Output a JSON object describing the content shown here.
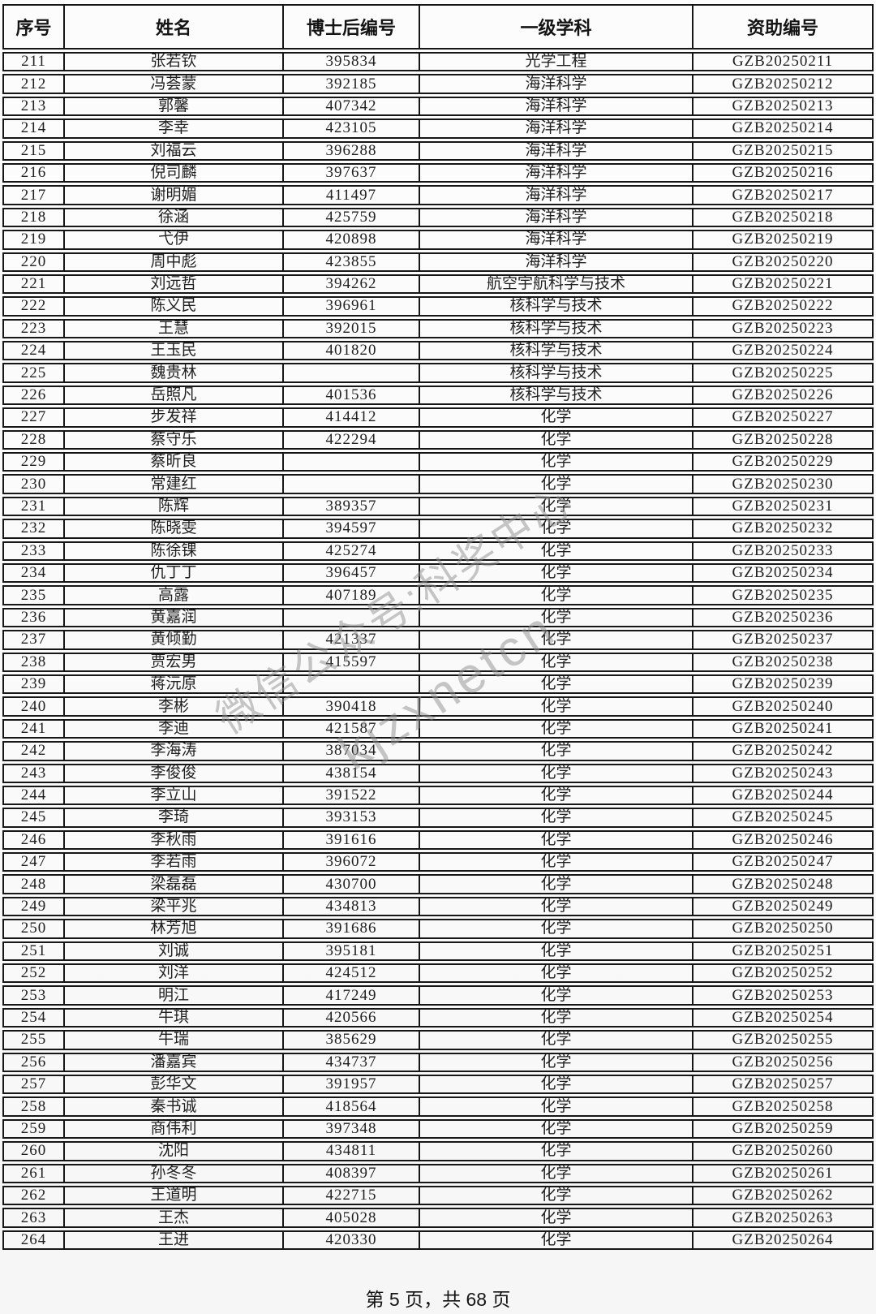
{
  "page": {
    "footer": "第 5 页，共 68 页"
  },
  "watermark": {
    "line1": "微信公众号:科奖中心",
    "line2": "kjzxnetcn"
  },
  "colors": {
    "border": "#161616",
    "text": "#1f1f1f",
    "watermark": "#8f8f8f",
    "background": "#fbfbfb"
  },
  "table": {
    "headers": [
      "序号",
      "姓名",
      "博士后编号",
      "一级学科",
      "资助编号"
    ],
    "rows": [
      [
        "211",
        "张若钦",
        "395834",
        "光学工程",
        "GZB20250211"
      ],
      [
        "212",
        "冯荟蒙",
        "392185",
        "海洋科学",
        "GZB20250212"
      ],
      [
        "213",
        "郭馨",
        "407342",
        "海洋科学",
        "GZB20250213"
      ],
      [
        "214",
        "李幸",
        "423105",
        "海洋科学",
        "GZB20250214"
      ],
      [
        "215",
        "刘福云",
        "396288",
        "海洋科学",
        "GZB20250215"
      ],
      [
        "216",
        "倪司麟",
        "397637",
        "海洋科学",
        "GZB20250216"
      ],
      [
        "217",
        "谢明媚",
        "411497",
        "海洋科学",
        "GZB20250217"
      ],
      [
        "218",
        "徐涵",
        "425759",
        "海洋科学",
        "GZB20250218"
      ],
      [
        "219",
        "弋伊",
        "420898",
        "海洋科学",
        "GZB20250219"
      ],
      [
        "220",
        "周中彪",
        "423855",
        "海洋科学",
        "GZB20250220"
      ],
      [
        "221",
        "刘远哲",
        "394262",
        "航空宇航科学与技术",
        "GZB20250221"
      ],
      [
        "222",
        "陈义民",
        "396961",
        "核科学与技术",
        "GZB20250222"
      ],
      [
        "223",
        "王慧",
        "392015",
        "核科学与技术",
        "GZB20250223"
      ],
      [
        "224",
        "王玉民",
        "401820",
        "核科学与技术",
        "GZB20250224"
      ],
      [
        "225",
        "魏贵林",
        "",
        "核科学与技术",
        "GZB20250225"
      ],
      [
        "226",
        "岳照凡",
        "401536",
        "核科学与技术",
        "GZB20250226"
      ],
      [
        "227",
        "步发祥",
        "414412",
        "化学",
        "GZB20250227"
      ],
      [
        "228",
        "蔡守乐",
        "422294",
        "化学",
        "GZB20250228"
      ],
      [
        "229",
        "蔡昕良",
        "",
        "化学",
        "GZB20250229"
      ],
      [
        "230",
        "常建红",
        "",
        "化学",
        "GZB20250230"
      ],
      [
        "231",
        "陈辉",
        "389357",
        "化学",
        "GZB20250231"
      ],
      [
        "232",
        "陈晓雯",
        "394597",
        "化学",
        "GZB20250232"
      ],
      [
        "233",
        "陈徐锞",
        "425274",
        "化学",
        "GZB20250233"
      ],
      [
        "234",
        "仇丁丁",
        "396457",
        "化学",
        "GZB20250234"
      ],
      [
        "235",
        "高露",
        "407189",
        "化学",
        "GZB20250235"
      ],
      [
        "236",
        "黄嘉润",
        "",
        "化学",
        "GZB20250236"
      ],
      [
        "237",
        "黄倾勤",
        "421337",
        "化学",
        "GZB20250237"
      ],
      [
        "238",
        "贾宏男",
        "415597",
        "化学",
        "GZB20250238"
      ],
      [
        "239",
        "蒋沅原",
        "",
        "化学",
        "GZB20250239"
      ],
      [
        "240",
        "李彬",
        "390418",
        "化学",
        "GZB20250240"
      ],
      [
        "241",
        "李迪",
        "421587",
        "化学",
        "GZB20250241"
      ],
      [
        "242",
        "李海涛",
        "387034",
        "化学",
        "GZB20250242"
      ],
      [
        "243",
        "李俊俊",
        "438154",
        "化学",
        "GZB20250243"
      ],
      [
        "244",
        "李立山",
        "391522",
        "化学",
        "GZB20250244"
      ],
      [
        "245",
        "李琦",
        "393153",
        "化学",
        "GZB20250245"
      ],
      [
        "246",
        "李秋雨",
        "391616",
        "化学",
        "GZB20250246"
      ],
      [
        "247",
        "李若雨",
        "396072",
        "化学",
        "GZB20250247"
      ],
      [
        "248",
        "梁磊磊",
        "430700",
        "化学",
        "GZB20250248"
      ],
      [
        "249",
        "梁平兆",
        "434813",
        "化学",
        "GZB20250249"
      ],
      [
        "250",
        "林芳旭",
        "391686",
        "化学",
        "GZB20250250"
      ],
      [
        "251",
        "刘诚",
        "395181",
        "化学",
        "GZB20250251"
      ],
      [
        "252",
        "刘洋",
        "424512",
        "化学",
        "GZB20250252"
      ],
      [
        "253",
        "明江",
        "417249",
        "化学",
        "GZB20250253"
      ],
      [
        "254",
        "牛琪",
        "420566",
        "化学",
        "GZB20250254"
      ],
      [
        "255",
        "牛瑞",
        "385629",
        "化学",
        "GZB20250255"
      ],
      [
        "256",
        "潘嘉宾",
        "434737",
        "化学",
        "GZB20250256"
      ],
      [
        "257",
        "彭华文",
        "391957",
        "化学",
        "GZB20250257"
      ],
      [
        "258",
        "秦书诚",
        "418564",
        "化学",
        "GZB20250258"
      ],
      [
        "259",
        "商伟利",
        "397348",
        "化学",
        "GZB20250259"
      ],
      [
        "260",
        "沈阳",
        "434811",
        "化学",
        "GZB20250260"
      ],
      [
        "261",
        "孙冬冬",
        "408397",
        "化学",
        "GZB20250261"
      ],
      [
        "262",
        "王道明",
        "422715",
        "化学",
        "GZB20250262"
      ],
      [
        "263",
        "王杰",
        "405028",
        "化学",
        "GZB20250263"
      ],
      [
        "264",
        "王进",
        "420330",
        "化学",
        "GZB20250264"
      ]
    ]
  }
}
